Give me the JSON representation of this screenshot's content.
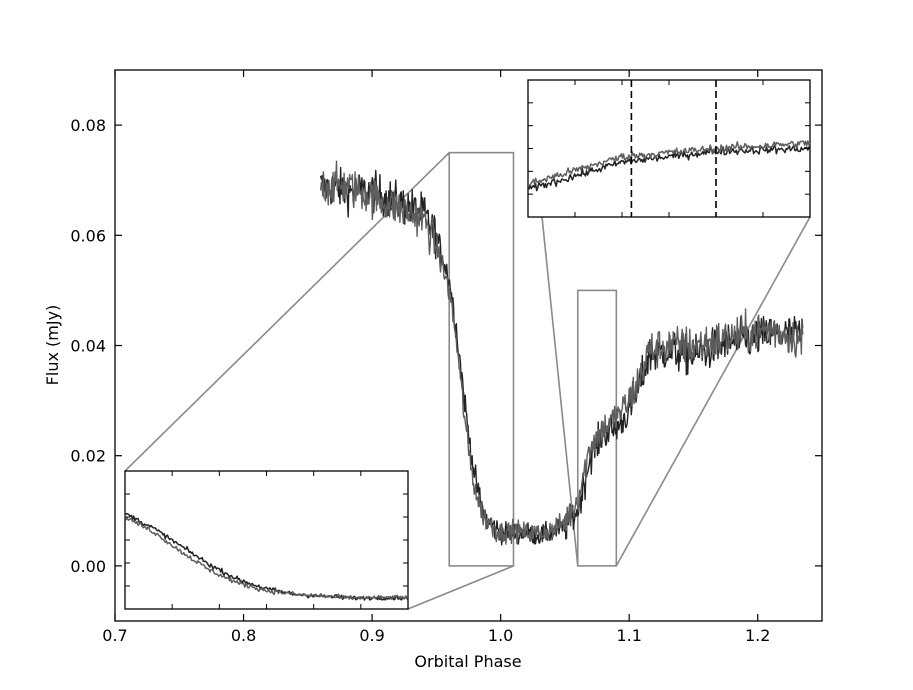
{
  "chart_data": {
    "type": "line",
    "xlabel": "Orbital Phase",
    "ylabel": "Flux (mJy)",
    "xlim": [
      0.7,
      1.25
    ],
    "ylim": [
      -0.01,
      0.09
    ],
    "x_ticks": [
      0.7,
      0.8,
      0.9,
      1.0,
      1.1,
      1.2
    ],
    "x_tick_labels": [
      "0.7",
      "0.8",
      "0.9",
      "1.0",
      "1.1",
      "1.2"
    ],
    "y_ticks": [
      0.0,
      0.02,
      0.04,
      0.06,
      0.08
    ],
    "y_tick_labels": [
      "0.00",
      "0.02",
      "0.04",
      "0.06",
      "0.08"
    ],
    "grid": false,
    "colors": {
      "series_dark": "#222222",
      "series_grey": "#5e5e5e",
      "zoom_box": "#8a8a8a"
    },
    "series": [
      {
        "x": [
          0.86,
          0.88,
          0.9,
          0.92,
          0.94,
          0.95,
          0.96,
          0.965,
          0.97,
          0.975,
          0.98,
          0.985,
          0.99,
          0.995,
          1.0,
          1.01,
          1.02,
          1.03,
          1.04,
          1.05,
          1.06,
          1.07,
          1.08,
          1.09,
          1.1,
          1.11,
          1.115,
          1.13,
          1.15,
          1.17,
          1.19,
          1.21,
          1.235
        ],
        "y": [
          0.069,
          0.068,
          0.068,
          0.066,
          0.064,
          0.06,
          0.052,
          0.044,
          0.034,
          0.024,
          0.016,
          0.011,
          0.008,
          0.007,
          0.006,
          0.006,
          0.006,
          0.0055,
          0.006,
          0.007,
          0.01,
          0.02,
          0.024,
          0.025,
          0.028,
          0.034,
          0.038,
          0.039,
          0.038,
          0.04,
          0.041,
          0.042,
          0.042
        ]
      },
      {
        "x": [
          0.86,
          0.88,
          0.9,
          0.92,
          0.94,
          0.95,
          0.96,
          0.965,
          0.97,
          0.975,
          0.98,
          0.985,
          0.99,
          0.995,
          1.0,
          1.01,
          1.02,
          1.03,
          1.04,
          1.05,
          1.06,
          1.07,
          1.08,
          1.09,
          1.1,
          1.11,
          1.115,
          1.13,
          1.15,
          1.17,
          1.19,
          1.21,
          1.235
        ],
        "y": [
          0.069,
          0.069,
          0.067,
          0.065,
          0.063,
          0.058,
          0.05,
          0.042,
          0.031,
          0.021,
          0.014,
          0.01,
          0.008,
          0.007,
          0.006,
          0.0065,
          0.006,
          0.006,
          0.0065,
          0.008,
          0.012,
          0.022,
          0.025,
          0.027,
          0.03,
          0.035,
          0.039,
          0.04,
          0.04,
          0.041,
          0.042,
          0.043,
          0.041
        ]
      }
    ],
    "zoom_regions": [
      {
        "x_range": [
          0.96,
          1.01
        ],
        "y_range": [
          0.0,
          0.075
        ]
      },
      {
        "x_range": [
          1.06,
          1.09
        ],
        "y_range": [
          0.0,
          0.05
        ]
      }
    ],
    "inset_upper_dashed_lines_x": [
      1.071,
      1.08
    ]
  }
}
